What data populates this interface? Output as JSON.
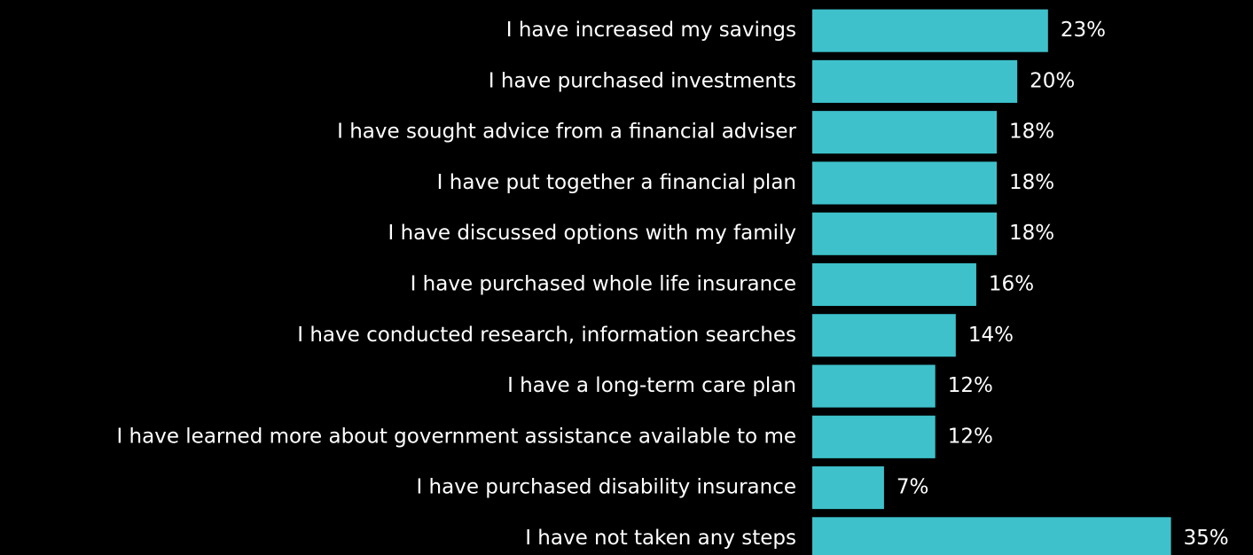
{
  "chart_data": {
    "type": "hbar",
    "categories": [
      "I have increased my savings",
      "I have purchased investments",
      "I have sought advice from a financial adviser",
      "I have put together a financial plan",
      "I have discussed options with my family",
      "I have purchased whole life insurance",
      "I have conducted research, information searches",
      "I have a long-term care plan",
      "I have learned more about government assistance available to me",
      "I have purchased disability insurance",
      "I have not taken any steps"
    ],
    "values": [
      23,
      20,
      18,
      18,
      18,
      16,
      14,
      12,
      12,
      7,
      35
    ],
    "value_labels": [
      "23%",
      "20%",
      "18%",
      "18%",
      "18%",
      "16%",
      "14%",
      "12%",
      "12%",
      "7%",
      "35%"
    ],
    "color": "#3ec1cb",
    "xlim": [
      0,
      43
    ]
  }
}
